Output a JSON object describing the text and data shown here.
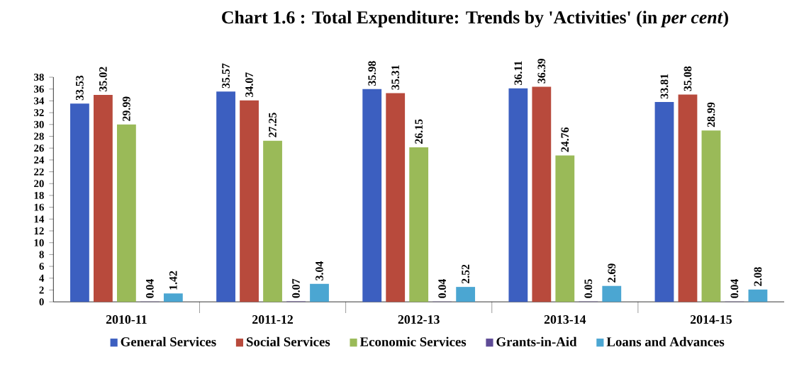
{
  "chart_data": {
    "type": "bar",
    "title": "Chart 1.6 : Total Expenditure: Trends by 'Activities' (in *per cent*)",
    "categories": [
      "2010-11",
      "2011-12",
      "2012-13",
      "2013-14",
      "2014-15"
    ],
    "series": [
      {
        "name": "General Services",
        "color": "#3c5fc0",
        "values": [
          33.53,
          35.57,
          35.98,
          36.11,
          33.81
        ]
      },
      {
        "name": "Social Services",
        "color": "#b84a3c",
        "values": [
          35.02,
          34.07,
          35.31,
          36.39,
          35.08
        ]
      },
      {
        "name": "Economic Services",
        "color": "#9aba58",
        "values": [
          29.99,
          27.25,
          26.15,
          24.76,
          28.99
        ]
      },
      {
        "name": "Grants-in-Aid",
        "color": "#5e4b96",
        "values": [
          0.04,
          0.07,
          0.04,
          0.05,
          0.04
        ]
      },
      {
        "name": "Loans and Advances",
        "color": "#4ba6d2",
        "values": [
          1.42,
          3.04,
          2.52,
          2.69,
          2.08
        ]
      }
    ],
    "ylim": [
      0,
      38
    ],
    "yticks": [
      0,
      2,
      4,
      6,
      8,
      10,
      12,
      14,
      16,
      18,
      20,
      22,
      24,
      26,
      28,
      30,
      32,
      34,
      36,
      38
    ],
    "data_labels": true,
    "legend": "bottom",
    "grid": false
  }
}
